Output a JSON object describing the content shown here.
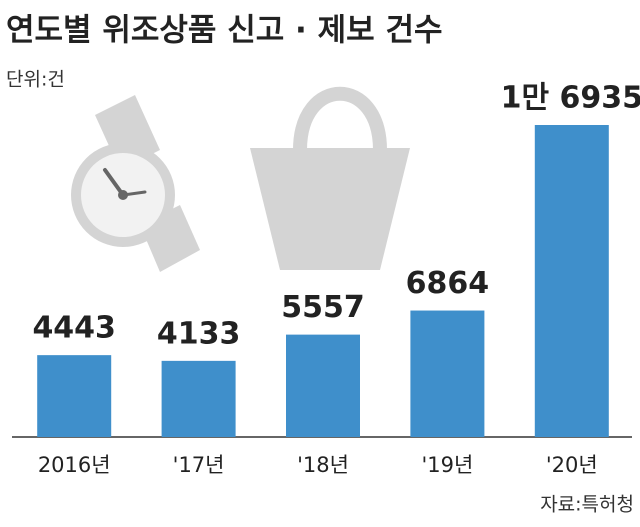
{
  "chart_data": {
    "type": "bar",
    "title": "연도별 위조상품 신고 · 제보 건수",
    "unit": "단위:건",
    "source": "자료:특허청",
    "categories": [
      "2016년",
      "'17년",
      "'18년",
      "'19년",
      "'20년"
    ],
    "values": [
      4443,
      4133,
      5557,
      6864,
      16935
    ],
    "value_labels": [
      "4443",
      "4133",
      "5557",
      "6864",
      "1만 6935"
    ],
    "color": "#3f8fcb"
  }
}
